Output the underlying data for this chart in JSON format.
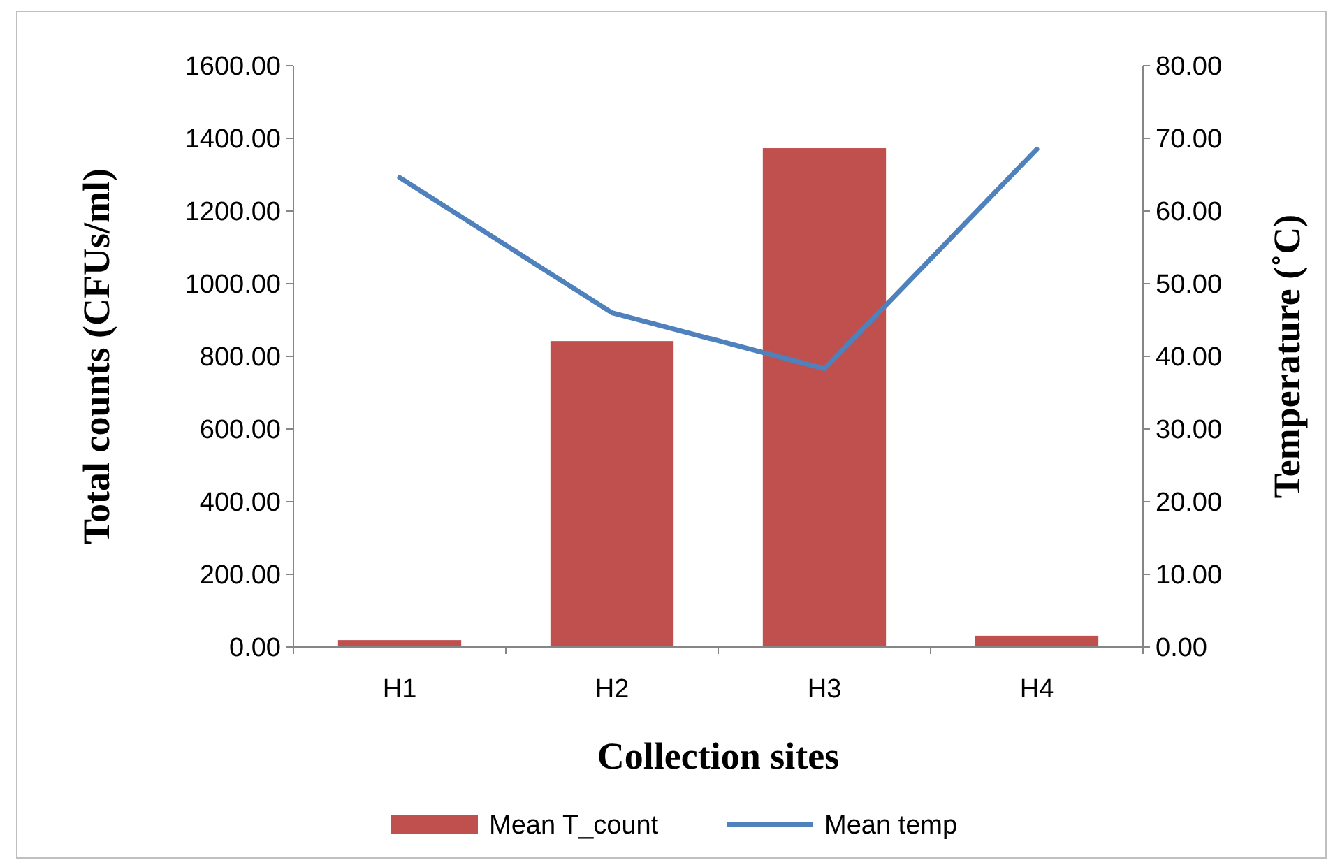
{
  "chart_data": {
    "type": "bar",
    "xlabel": "Collection sites",
    "ylabel": "Total counts (CFUs/ml)",
    "y2label": "Temperature (˚C)",
    "categories": [
      "H1",
      "H2",
      "H3",
      "H4"
    ],
    "series": [
      {
        "name": "Mean T_count",
        "color": "#c0504d",
        "values": [
          19,
          842,
          1373,
          31
        ]
      },
      {
        "name": "Mean temp",
        "type": "line",
        "axis": "y2",
        "color": "#4f81bd",
        "values": [
          64.6,
          46.0,
          38.3,
          68.5
        ]
      }
    ],
    "ylim": [
      0,
      1600
    ],
    "yticks": [
      {
        "value": 0,
        "label": "0.00"
      },
      {
        "value": 200,
        "label": "200.00"
      },
      {
        "value": 400,
        "label": "400.00"
      },
      {
        "value": 600,
        "label": "600.00"
      },
      {
        "value": 800,
        "label": "800.00"
      },
      {
        "value": 1000,
        "label": "1000.00"
      },
      {
        "value": 1200,
        "label": "1200.00"
      },
      {
        "value": 1400,
        "label": "1400.00"
      },
      {
        "value": 1600,
        "label": "1600.00"
      }
    ],
    "y2lim": [
      0,
      80
    ],
    "y2ticks": [
      {
        "value": 0,
        "label": "0.00"
      },
      {
        "value": 10,
        "label": "10.00"
      },
      {
        "value": 20,
        "label": "20.00"
      },
      {
        "value": 30,
        "label": "30.00"
      },
      {
        "value": 40,
        "label": "40.00"
      },
      {
        "value": 50,
        "label": "50.00"
      },
      {
        "value": 60,
        "label": "60.00"
      },
      {
        "value": 70,
        "label": "70.00"
      },
      {
        "value": 80,
        "label": "80.00"
      }
    ],
    "legend": "bottom",
    "line_style": "solid",
    "marker": "none"
  }
}
